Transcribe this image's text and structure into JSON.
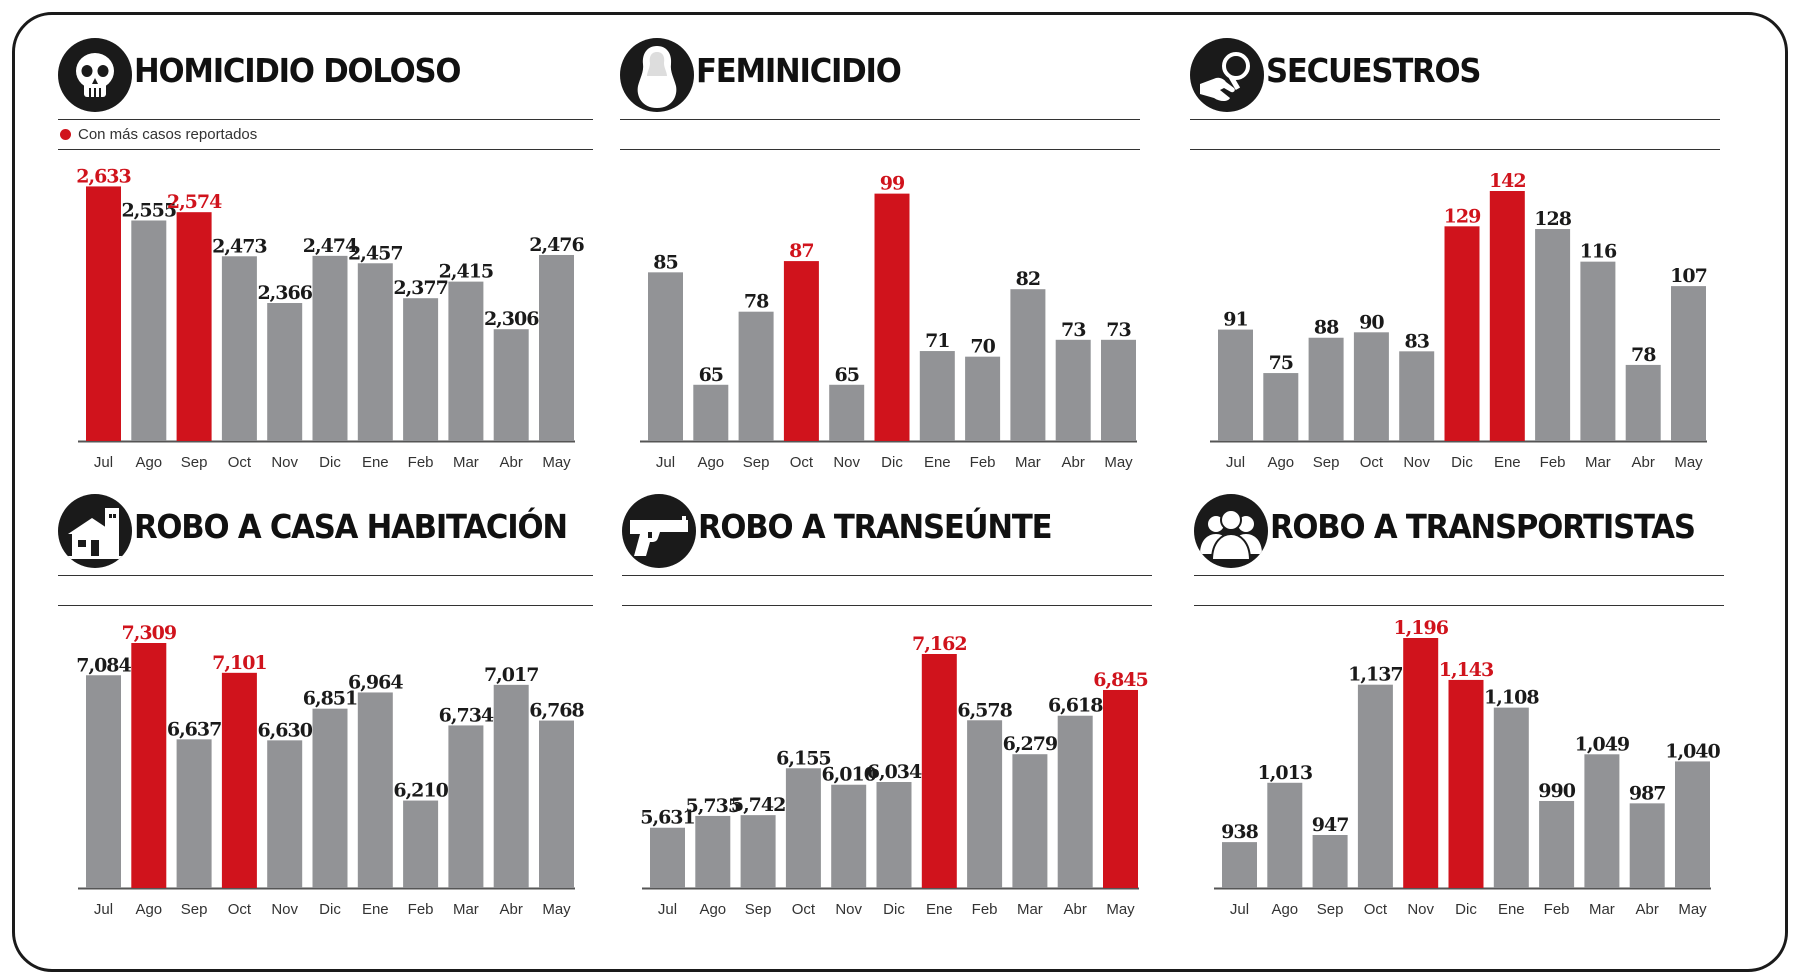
{
  "colors": {
    "highlight": "#d0131c",
    "normal": "#929396",
    "axis": "#555555"
  },
  "legend": {
    "label": "Con más casos reportados"
  },
  "chart_data": [
    {
      "type": "bar",
      "title": "HOMICIDIO DOLOSO",
      "icon": "skull-icon",
      "categories": [
        "Jul",
        "Ago",
        "Sep",
        "Oct",
        "Nov",
        "Dic",
        "Ene",
        "Feb",
        "Mar",
        "Abr",
        "May"
      ],
      "values": [
        2633,
        2555,
        2574,
        2473,
        2366,
        2474,
        2457,
        2377,
        2415,
        2306,
        2476
      ],
      "labels": [
        "2,633",
        "2,555",
        "2,574",
        "2,473",
        "2,366",
        "2,474",
        "2,457",
        "2,377",
        "2,415",
        "2,306",
        "2,476"
      ],
      "highlight": [
        true,
        false,
        true,
        false,
        false,
        false,
        false,
        false,
        false,
        false,
        false
      ],
      "ylim": [
        2050,
        2650
      ]
    },
    {
      "type": "bar",
      "title": "FEMINICIDIO",
      "icon": "woman-silhouette-icon",
      "categories": [
        "Jul",
        "Ago",
        "Sep",
        "Oct",
        "Nov",
        "Dic",
        "Ene",
        "Feb",
        "Mar",
        "Abr",
        "May"
      ],
      "values": [
        85,
        65,
        78,
        87,
        65,
        99,
        71,
        70,
        82,
        73,
        73
      ],
      "labels": [
        "85",
        "65",
        "78",
        "87",
        "65",
        "99",
        "71",
        "70",
        "82",
        "73",
        "73"
      ],
      "highlight": [
        false,
        false,
        false,
        true,
        false,
        true,
        false,
        false,
        false,
        false,
        false
      ],
      "ylim": [
        55,
        100
      ]
    },
    {
      "type": "bar",
      "title": "SECUESTROS",
      "icon": "hand-magnifier-icon",
      "categories": [
        "Jul",
        "Ago",
        "Sep",
        "Oct",
        "Nov",
        "Dic",
        "Ene",
        "Feb",
        "Mar",
        "Abr",
        "May"
      ],
      "values": [
        91,
        75,
        88,
        90,
        83,
        129,
        142,
        128,
        116,
        78,
        107
      ],
      "labels": [
        "91",
        "75",
        "88",
        "90",
        "83",
        "129",
        "142",
        "128",
        "116",
        "78",
        "107"
      ],
      "highlight": [
        false,
        false,
        false,
        false,
        false,
        true,
        true,
        false,
        false,
        false,
        false
      ],
      "ylim": [
        50,
        142
      ]
    },
    {
      "type": "bar",
      "title": "ROBO A CASA HABITACIÓN",
      "icon": "house-icon",
      "categories": [
        "Jul",
        "Ago",
        "Sep",
        "Oct",
        "Nov",
        "Dic",
        "Ene",
        "Feb",
        "Mar",
        "Abr",
        "May"
      ],
      "values": [
        7084,
        7309,
        6637,
        7101,
        6630,
        6851,
        6964,
        6210,
        6734,
        7017,
        6768
      ],
      "labels": [
        "7,084",
        "7,309",
        "6,637",
        "7,101",
        "6,630",
        "6,851",
        "6,964",
        "6,210",
        "6,734",
        "7,017",
        "6,768"
      ],
      "highlight": [
        false,
        true,
        false,
        true,
        false,
        false,
        false,
        false,
        false,
        false,
        false
      ],
      "ylim": [
        5600,
        7309
      ]
    },
    {
      "type": "bar",
      "title": "ROBO A TRANSEÚNTE",
      "icon": "pistol-icon",
      "categories": [
        "Jul",
        "Ago",
        "Sep",
        "Oct",
        "Nov",
        "Dic",
        "Ene",
        "Feb",
        "Mar",
        "Abr",
        "May"
      ],
      "values": [
        5631,
        5735,
        5742,
        6155,
        6010,
        6034,
        7162,
        6578,
        6279,
        6618,
        6845
      ],
      "labels": [
        "5,631",
        "5,735",
        "5,742",
        "6,155",
        "6,010",
        "6,034",
        "7,162",
        "6,578",
        "6,279",
        "6,618",
        "6,845"
      ],
      "highlight": [
        false,
        false,
        false,
        false,
        false,
        false,
        true,
        false,
        false,
        false,
        true
      ],
      "ylim": [
        5100,
        7162
      ]
    },
    {
      "type": "bar",
      "title": "ROBO A TRANSPORTISTAS",
      "icon": "people-group-icon",
      "categories": [
        "Jul",
        "Ago",
        "Sep",
        "Oct",
        "Nov",
        "Dic",
        "Ene",
        "Feb",
        "Mar",
        "Abr",
        "May"
      ],
      "values": [
        938,
        1013,
        947,
        1137,
        1196,
        1143,
        1108,
        990,
        1049,
        987,
        1040
      ],
      "labels": [
        "938",
        "1,013",
        "947",
        "1,137",
        "1,196",
        "1,143",
        "1,108",
        "990",
        "1,049",
        "987",
        "1,040"
      ],
      "highlight": [
        false,
        false,
        false,
        false,
        true,
        true,
        false,
        false,
        false,
        false,
        false
      ],
      "ylim": [
        880,
        1196
      ]
    }
  ]
}
